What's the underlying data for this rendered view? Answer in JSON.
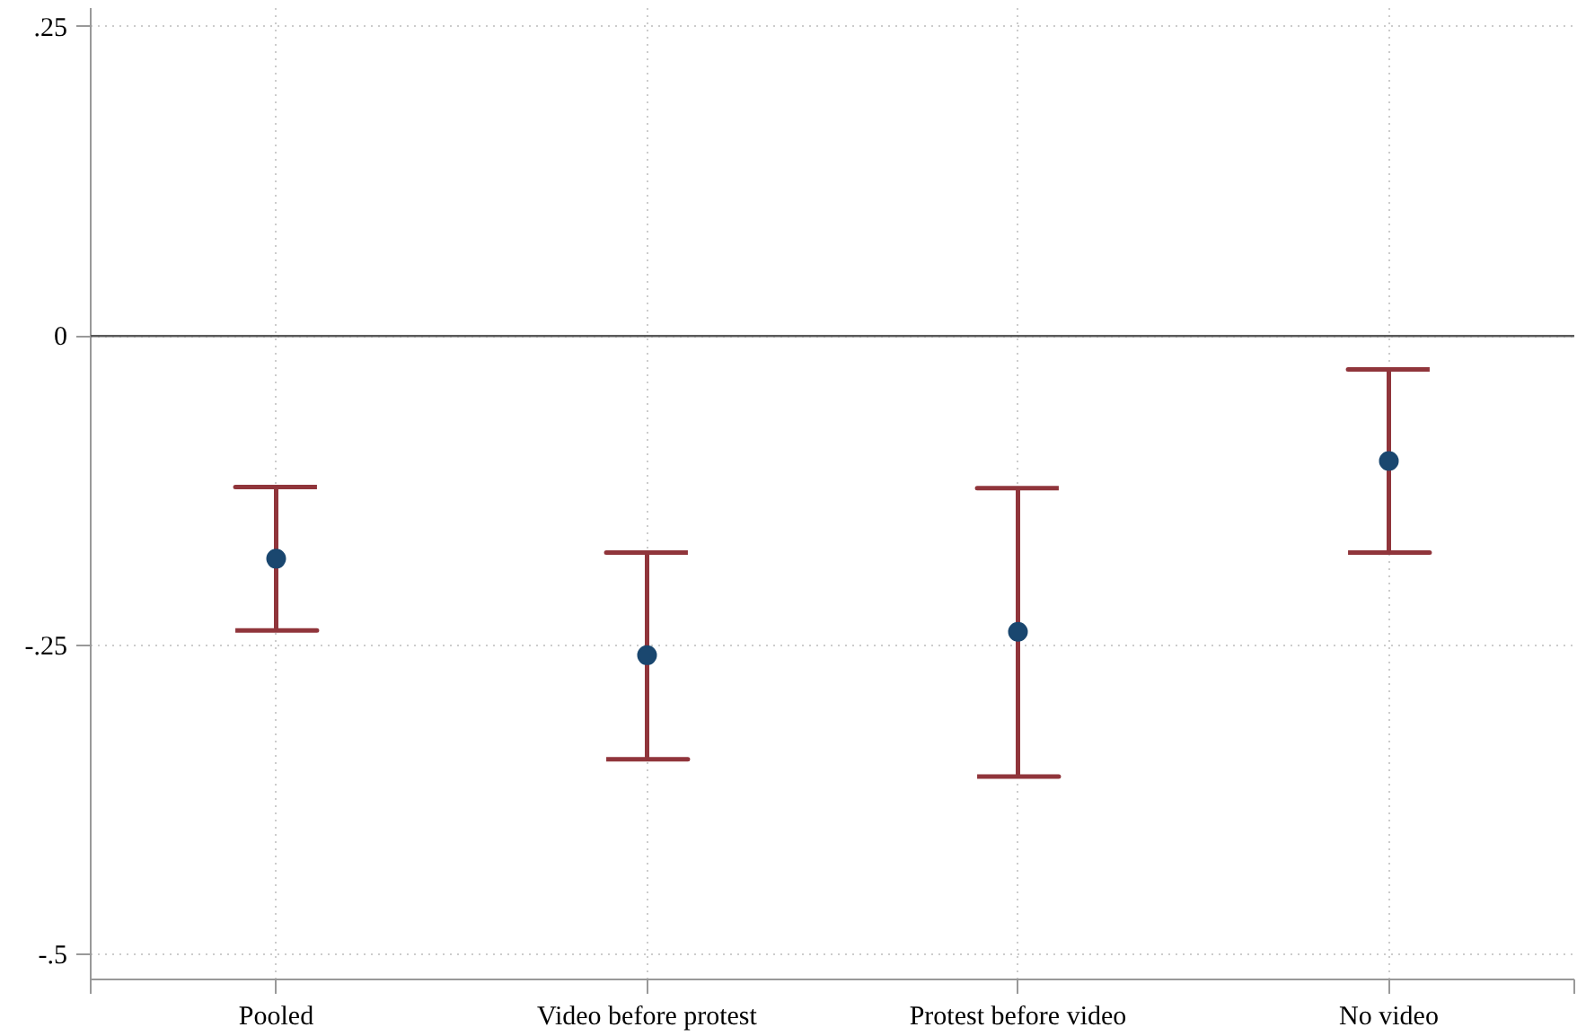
{
  "chart_data": {
    "type": "scatter",
    "categories": [
      "Pooled",
      "Video before protest",
      "Protest before video",
      "No video"
    ],
    "values": [
      -0.18,
      -0.258,
      -0.239,
      -0.101
    ],
    "errors": [
      [
        -0.238,
        -0.122
      ],
      [
        -0.342,
        -0.175
      ],
      [
        -0.356,
        -0.123
      ],
      [
        -0.175,
        -0.027
      ]
    ],
    "color": "#1a476f",
    "ylim": [
      -0.52,
      0.265
    ],
    "yticks": [
      {
        "value": 0.25,
        "label": ".25"
      },
      0,
      {
        "value": -0.25,
        "label": "-.25"
      },
      {
        "value": -0.5,
        "label": "-.5"
      }
    ],
    "ref_lines": [
      {
        "axis": "y",
        "value": 0,
        "color": "#5a5a5a"
      }
    ],
    "grid": true,
    "marker": "circle"
  }
}
